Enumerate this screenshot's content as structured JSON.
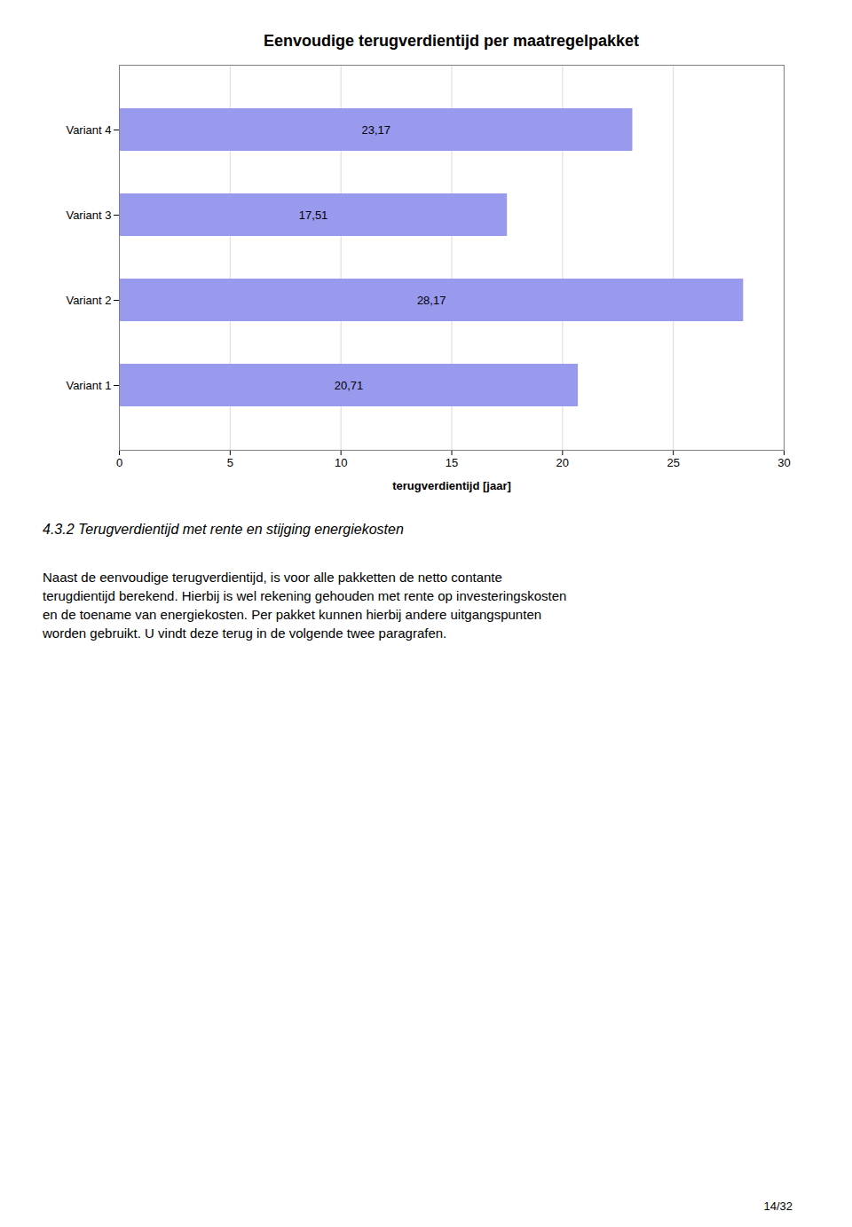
{
  "chart_data": {
    "type": "bar",
    "orientation": "horizontal",
    "title": "Eenvoudige terugverdientijd per maatregelpakket",
    "categories": [
      "Variant 1",
      "Variant 2",
      "Variant 3",
      "Variant 4"
    ],
    "values": [
      20.71,
      28.17,
      17.51,
      23.17
    ],
    "value_labels": [
      "20,71",
      "28,17",
      "17,51",
      "23,17"
    ],
    "data_labels": true,
    "color": "#9999ee",
    "xlabel": "terugverdientijd [jaar]",
    "xlim": [
      0,
      30
    ],
    "xticks": [
      0,
      5,
      10,
      15,
      20,
      25,
      30
    ],
    "grid": true,
    "annotations": [
      "4.3.2   Terugverdientijd met rente en stijging energiekosten",
      "Naast de eenvoudige terugverdientijd, is voor alle pakketten de netto contante\nterugdientijd berekend. Hierbij is wel rekening gehouden met rente op investeringskosten\nen de toename van energiekosten. Per pakket kunnen hierbij andere uitgangspunten\nworden gebruikt. U vindt deze terug in de volgende twee paragrafen.",
      "14/32"
    ]
  }
}
